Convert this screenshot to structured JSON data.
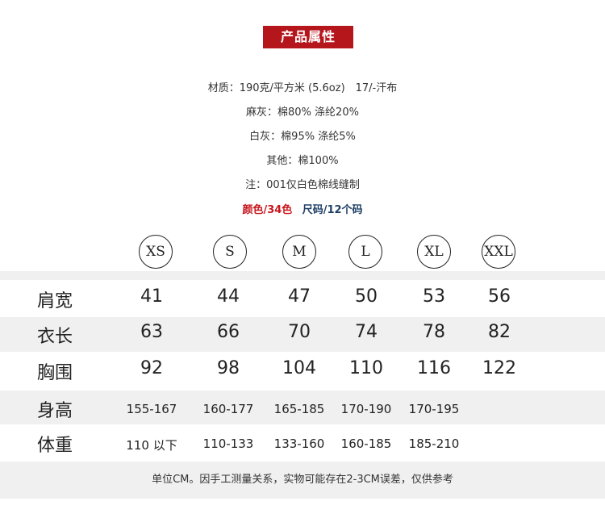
{
  "header": {
    "title": "产品属性",
    "accent": "#b5161c"
  },
  "attributes": [
    "材质：190克/平方米 (5.6oz)　17/-汗布",
    "麻灰：棉80%  涤纶20%",
    "白灰：棉95%  涤纶5%",
    "其他：棉100%",
    "注：001仅白色棉线缝制"
  ],
  "highlights": {
    "colors": "颜色/34色",
    "colors_color": "#c8161d",
    "sizes": "尺码/12个码",
    "sizes_color": "#1f3f66"
  },
  "sizes": [
    "XS",
    "S",
    "M",
    "L",
    "XL",
    "XXL"
  ],
  "rows": [
    {
      "label": "肩宽",
      "values": [
        "41",
        "44",
        "47",
        "50",
        "53",
        "56"
      ]
    },
    {
      "label": "衣长",
      "values": [
        "63",
        "66",
        "70",
        "74",
        "78",
        "82"
      ]
    },
    {
      "label": "胸围",
      "values": [
        "92",
        "98",
        "104",
        "110",
        "116",
        "122"
      ]
    },
    {
      "label": "身高",
      "values": [
        "155-167",
        "160-177",
        "165-185",
        "170-190",
        "170-195",
        ""
      ]
    },
    {
      "label": "体重",
      "values": [
        "110 以下",
        "110-133",
        "133-160",
        "160-185",
        "185-210",
        ""
      ]
    }
  ],
  "footer": "单位CM。因手工测量关系，实物可能存在2-3CM误差，仅供参考"
}
